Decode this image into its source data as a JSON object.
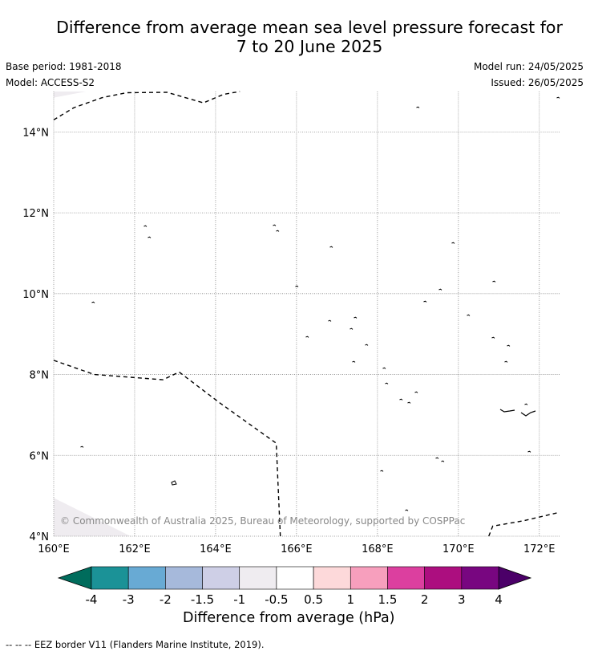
{
  "header": {
    "title_line1": "Difference from average mean sea level pressure forecast for",
    "title_line2": "7 to 20 June 2025",
    "base_period": "Base period: 1981-2018",
    "model": "Model: ACCESS-S2",
    "model_run": "Model run: 24/05/2025",
    "issued": "Issued: 26/05/2025"
  },
  "map": {
    "lon_ticks": [
      "160°E",
      "162°E",
      "164°E",
      "166°E",
      "168°E",
      "170°E",
      "172°E"
    ],
    "lat_ticks": [
      "14°N",
      "12°N",
      "10°N",
      "8°N",
      "6°N",
      "4°N"
    ],
    "lon_values": [
      160,
      162,
      164,
      166,
      168,
      170,
      172
    ],
    "lat_values": [
      14,
      12,
      10,
      8,
      6,
      4
    ],
    "copyright": "© Commonwealth of Australia 2025, Bureau of Meteorology, supported by COSPPac",
    "eez_border": [
      [
        [
          160,
          14.3
        ],
        [
          160.5,
          14.6
        ],
        [
          161.2,
          14.85
        ],
        [
          161.8,
          14.97
        ],
        [
          162.8,
          14.98
        ],
        [
          163.7,
          14.72
        ],
        [
          164.2,
          14.93
        ],
        [
          164.6,
          15.0
        ]
      ],
      [
        [
          160,
          8.35
        ],
        [
          161,
          8.0
        ],
        [
          162.7,
          7.87
        ],
        [
          163.1,
          8.06
        ],
        [
          164.1,
          7.3
        ],
        [
          165.5,
          6.3
        ],
        [
          165.6,
          4.0
        ]
      ],
      [
        [
          170.75,
          4.0
        ],
        [
          170.85,
          4.25
        ],
        [
          171.6,
          4.38
        ],
        [
          172.45,
          4.58
        ]
      ]
    ],
    "anomaly_patches": [
      {
        "label": "-0.5 to -1",
        "color": "#efecf0",
        "polygon": [
          [
            160,
            4.95
          ],
          [
            161.9,
            4.0
          ],
          [
            160,
            4.0
          ]
        ]
      },
      {
        "label": "-0.5 to -1",
        "color": "#efecf0",
        "polygon": [
          [
            160,
            15.0
          ],
          [
            160.8,
            15.0
          ],
          [
            160,
            14.85
          ]
        ]
      }
    ]
  },
  "colorbar": {
    "colors": [
      "#006c5c",
      "#1b9297",
      "#68aad4",
      "#a6b9db",
      "#cecfe6",
      "#efecf0",
      "#ffffff",
      "#fdd9da",
      "#f79fbd",
      "#dc3f9f",
      "#ac0e7f",
      "#780680",
      "#4b0068"
    ],
    "tick_labels": [
      "-4",
      "-3",
      "-2",
      "-1.5",
      "-1",
      "-0.5",
      "0.5",
      "1",
      "1.5",
      "2",
      "3",
      "4"
    ],
    "label": "Difference from average (hPa)"
  },
  "footnote": "--  --  -- EEZ border V11 (Flanders Marine Institute, 2019)."
}
